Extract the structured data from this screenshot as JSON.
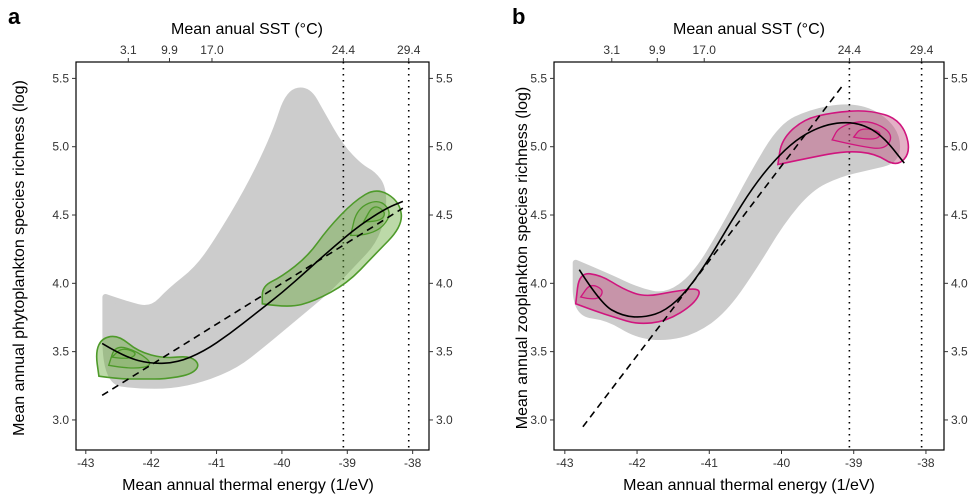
{
  "figure": {
    "panels": [
      "a",
      "b"
    ]
  },
  "colors": {
    "cloud": "#c4c4c4",
    "panel_a_contour": "#4e9a2a",
    "panel_a_fill": "#6aaa3e",
    "panel_b_contour": "#d0157e",
    "panel_b_fill": "#c0507f",
    "fit_line": "#000000"
  },
  "chart_data": [
    {
      "type": "scatter",
      "panel_label": "a",
      "xlabel": "Mean annual thermal energy (1/eV)",
      "top_xlabel": "Mean anual SST (°C)",
      "ylabel": "Mean annual phytoplankton species richness (log)",
      "xlim": [
        -43.15,
        -37.75
      ],
      "ylim": [
        2.78,
        5.62
      ],
      "x_ticks": [
        -43,
        -42,
        -41,
        -40,
        -39,
        -38
      ],
      "x_tick_labels": [
        "-43",
        "-42",
        "-41",
        "-40",
        "-39",
        "-38"
      ],
      "y_ticks": [
        3.0,
        3.5,
        4.0,
        4.5,
        5.0,
        5.5
      ],
      "y_tick_labels": [
        "3.0",
        "3.5",
        "4.0",
        "4.5",
        "5.0",
        "5.5"
      ],
      "top_ticks": [
        -42.35,
        -41.72,
        -41.07,
        -39.06,
        -38.06
      ],
      "top_tick_labels": [
        "3.1",
        "9.9",
        "17.0",
        "24.4",
        "29.4"
      ],
      "vlines_dotted": [
        -39.06,
        -38.06
      ],
      "grid": false,
      "cloud_upper": [
        [
          -42.7,
          3.9
        ],
        [
          -42.4,
          3.85
        ],
        [
          -42.0,
          3.8
        ],
        [
          -41.7,
          3.95
        ],
        [
          -41.3,
          4.1
        ],
        [
          -41.0,
          4.3
        ],
        [
          -40.5,
          4.7
        ],
        [
          -40.1,
          5.1
        ],
        [
          -39.9,
          5.4
        ],
        [
          -39.6,
          5.42
        ],
        [
          -39.4,
          5.25
        ],
        [
          -39.1,
          5.0
        ],
        [
          -38.8,
          4.85
        ],
        [
          -38.6,
          4.8
        ],
        [
          -38.45,
          4.7
        ]
      ],
      "cloud_lower": [
        [
          -38.45,
          4.5
        ],
        [
          -38.6,
          4.3
        ],
        [
          -38.9,
          4.15
        ],
        [
          -39.3,
          3.95
        ],
        [
          -39.8,
          3.75
        ],
        [
          -40.3,
          3.55
        ],
        [
          -40.7,
          3.4
        ],
        [
          -41.2,
          3.3
        ],
        [
          -41.7,
          3.25
        ],
        [
          -42.2,
          3.25
        ],
        [
          -42.7,
          3.28
        ]
      ],
      "kde_regions": [
        [
          [
            -42.8,
            3.32
          ],
          [
            -42.5,
            3.3
          ],
          [
            -42.1,
            3.3
          ],
          [
            -41.8,
            3.3
          ],
          [
            -41.4,
            3.33
          ],
          [
            -41.25,
            3.4
          ],
          [
            -41.4,
            3.47
          ],
          [
            -41.8,
            3.45
          ],
          [
            -42.2,
            3.5
          ],
          [
            -42.5,
            3.62
          ],
          [
            -42.75,
            3.6
          ],
          [
            -42.85,
            3.5
          ]
        ],
        [
          [
            -40.3,
            3.85
          ],
          [
            -39.9,
            3.82
          ],
          [
            -39.5,
            3.87
          ],
          [
            -39.0,
            4.0
          ],
          [
            -38.6,
            4.2
          ],
          [
            -38.15,
            4.42
          ],
          [
            -38.2,
            4.6
          ],
          [
            -38.55,
            4.7
          ],
          [
            -38.9,
            4.6
          ],
          [
            -39.3,
            4.4
          ],
          [
            -39.6,
            4.2
          ],
          [
            -40.0,
            4.05
          ],
          [
            -40.3,
            3.98
          ]
        ]
      ],
      "kde_inner": [
        [
          [
            -42.65,
            3.4
          ],
          [
            -42.3,
            3.37
          ],
          [
            -41.95,
            3.4
          ],
          [
            -42.2,
            3.5
          ],
          [
            -42.55,
            3.55
          ]
        ],
        [
          [
            -42.6,
            3.46
          ],
          [
            -42.35,
            3.44
          ],
          [
            -42.2,
            3.49
          ],
          [
            -42.45,
            3.53
          ]
        ],
        [
          [
            -38.95,
            4.35
          ],
          [
            -38.6,
            4.35
          ],
          [
            -38.3,
            4.5
          ],
          [
            -38.5,
            4.62
          ],
          [
            -38.85,
            4.55
          ]
        ],
        [
          [
            -38.75,
            4.45
          ],
          [
            -38.5,
            4.45
          ],
          [
            -38.4,
            4.52
          ],
          [
            -38.6,
            4.58
          ]
        ]
      ],
      "dashed_line": [
        [
          -42.75,
          3.18
        ],
        [
          -38.15,
          4.55
        ]
      ],
      "fit_curve": [
        [
          -42.75,
          3.56
        ],
        [
          -42.4,
          3.46
        ],
        [
          -42.0,
          3.41
        ],
        [
          -41.6,
          3.42
        ],
        [
          -41.2,
          3.5
        ],
        [
          -40.8,
          3.63
        ],
        [
          -40.4,
          3.78
        ],
        [
          -40.0,
          3.93
        ],
        [
          -39.6,
          4.1
        ],
        [
          -39.2,
          4.27
        ],
        [
          -38.8,
          4.43
        ],
        [
          -38.4,
          4.55
        ],
        [
          -38.15,
          4.6
        ]
      ]
    },
    {
      "type": "scatter",
      "panel_label": "b",
      "xlabel": "Mean annual thermal energy (1/eV)",
      "top_xlabel": "Mean anual SST (°C)",
      "ylabel": "Mean annual zooplankton species richness (log)",
      "xlim": [
        -43.15,
        -37.75
      ],
      "ylim": [
        2.78,
        5.62
      ],
      "x_ticks": [
        -43,
        -42,
        -41,
        -40,
        -39,
        -38
      ],
      "x_tick_labels": [
        "-43",
        "-42",
        "-41",
        "-40",
        "-39",
        "-38"
      ],
      "y_ticks": [
        3.0,
        3.5,
        4.0,
        4.5,
        5.0,
        5.5
      ],
      "y_tick_labels": [
        "3.0",
        "3.5",
        "4.0",
        "4.5",
        "5.0",
        "5.5"
      ],
      "top_ticks": [
        -42.35,
        -41.72,
        -41.07,
        -39.06,
        -38.06
      ],
      "top_tick_labels": [
        "3.1",
        "9.9",
        "17.0",
        "24.4",
        "29.4"
      ],
      "vlines_dotted": [
        -39.06,
        -38.06
      ],
      "grid": false,
      "cloud_upper": [
        [
          -42.85,
          4.15
        ],
        [
          -42.4,
          4.05
        ],
        [
          -42.0,
          3.95
        ],
        [
          -41.6,
          3.9
        ],
        [
          -41.2,
          4.05
        ],
        [
          -40.8,
          4.4
        ],
        [
          -40.4,
          4.8
        ],
        [
          -40.0,
          5.15
        ],
        [
          -39.6,
          5.25
        ],
        [
          -39.1,
          5.3
        ],
        [
          -38.7,
          5.25
        ],
        [
          -38.4,
          5.1
        ]
      ],
      "cloud_lower": [
        [
          -38.4,
          4.9
        ],
        [
          -38.8,
          4.85
        ],
        [
          -39.2,
          4.8
        ],
        [
          -39.6,
          4.7
        ],
        [
          -40.0,
          4.45
        ],
        [
          -40.4,
          4.1
        ],
        [
          -40.8,
          3.8
        ],
        [
          -41.2,
          3.65
        ],
        [
          -41.6,
          3.6
        ],
        [
          -42.0,
          3.62
        ],
        [
          -42.4,
          3.75
        ],
        [
          -42.85,
          3.78
        ]
      ],
      "kde_regions": [
        [
          [
            -42.85,
            3.85
          ],
          [
            -42.6,
            3.8
          ],
          [
            -42.3,
            3.75
          ],
          [
            -42.0,
            3.7
          ],
          [
            -41.6,
            3.72
          ],
          [
            -41.2,
            3.85
          ],
          [
            -41.1,
            3.97
          ],
          [
            -41.5,
            3.94
          ],
          [
            -41.9,
            3.9
          ],
          [
            -42.2,
            3.96
          ],
          [
            -42.5,
            4.06
          ],
          [
            -42.8,
            4.08
          ]
        ],
        [
          [
            -40.05,
            4.87
          ],
          [
            -39.6,
            4.92
          ],
          [
            -39.1,
            4.97
          ],
          [
            -38.7,
            4.95
          ],
          [
            -38.4,
            4.85
          ],
          [
            -38.2,
            4.97
          ],
          [
            -38.35,
            5.2
          ],
          [
            -38.8,
            5.27
          ],
          [
            -39.3,
            5.25
          ],
          [
            -39.7,
            5.2
          ],
          [
            -40.0,
            5.05
          ]
        ]
      ],
      "kde_inner": [
        [
          [
            -42.78,
            3.9
          ],
          [
            -42.55,
            3.87
          ],
          [
            -42.45,
            3.95
          ],
          [
            -42.65,
            4.0
          ]
        ],
        [
          [
            -39.3,
            5.05
          ],
          [
            -38.9,
            5.0
          ],
          [
            -38.55,
            4.98
          ],
          [
            -38.45,
            5.1
          ],
          [
            -38.8,
            5.2
          ],
          [
            -39.2,
            5.15
          ]
        ],
        [
          [
            -39.0,
            5.07
          ],
          [
            -38.7,
            5.04
          ],
          [
            -38.6,
            5.11
          ],
          [
            -38.9,
            5.14
          ]
        ]
      ],
      "dashed_line": [
        [
          -42.75,
          2.95
        ],
        [
          -39.15,
          5.45
        ]
      ],
      "fit_curve": [
        [
          -42.8,
          4.1
        ],
        [
          -42.5,
          3.85
        ],
        [
          -42.2,
          3.76
        ],
        [
          -41.9,
          3.75
        ],
        [
          -41.6,
          3.8
        ],
        [
          -41.3,
          3.95
        ],
        [
          -41.0,
          4.18
        ],
        [
          -40.7,
          4.45
        ],
        [
          -40.4,
          4.7
        ],
        [
          -40.1,
          4.9
        ],
        [
          -39.8,
          5.05
        ],
        [
          -39.5,
          5.14
        ],
        [
          -39.2,
          5.18
        ],
        [
          -38.9,
          5.17
        ],
        [
          -38.6,
          5.08
        ],
        [
          -38.3,
          4.88
        ]
      ]
    }
  ]
}
